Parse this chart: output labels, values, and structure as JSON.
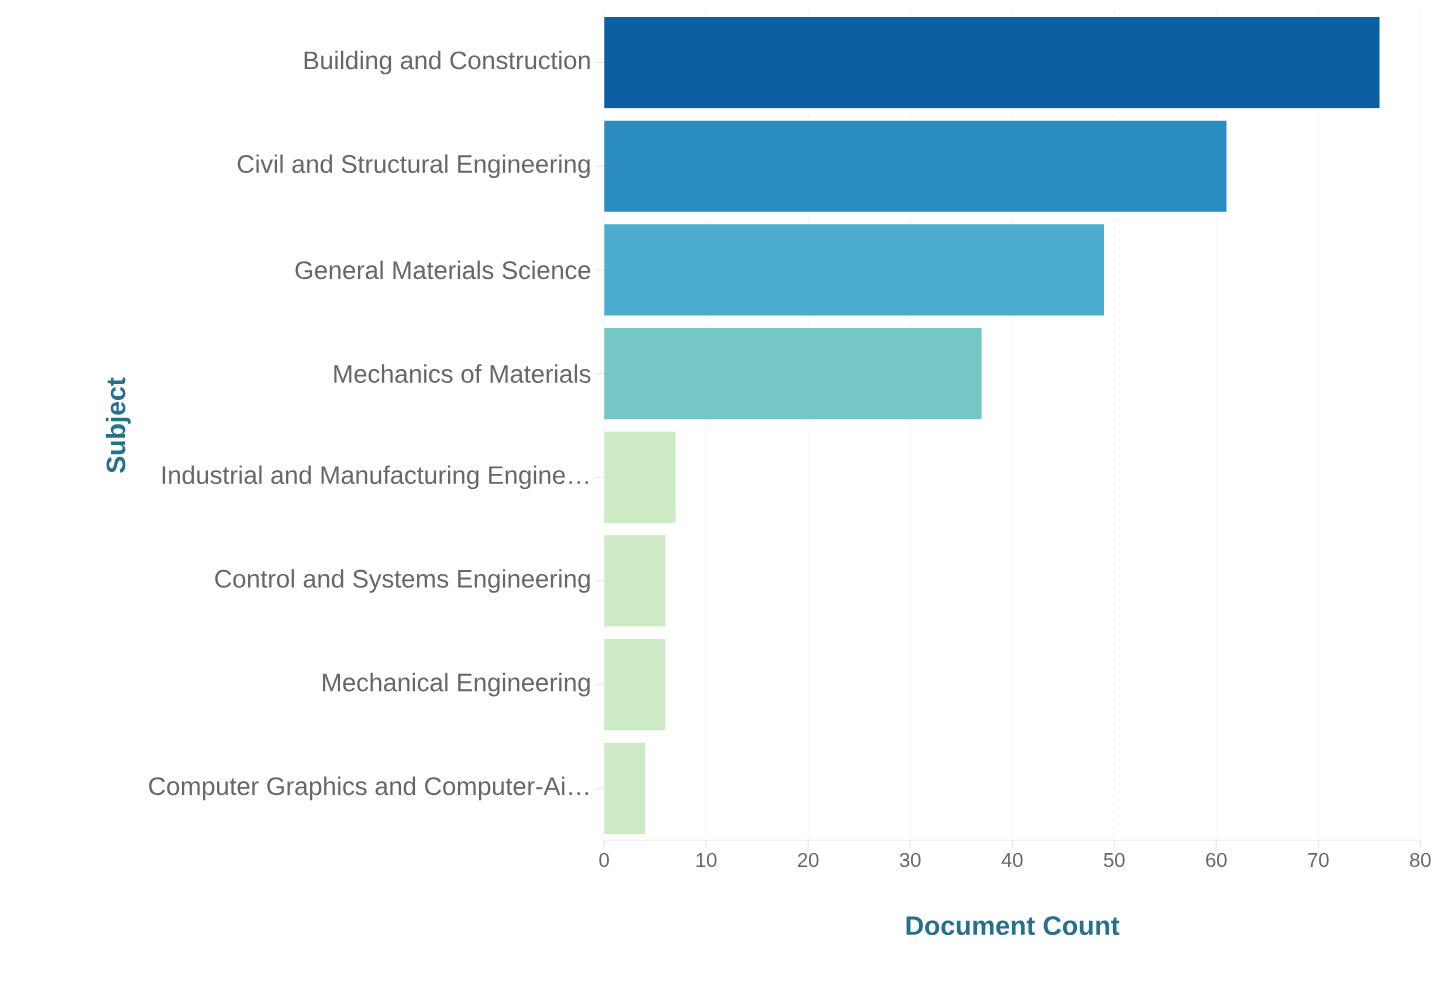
{
  "chart_data": {
    "type": "bar",
    "orientation": "horizontal",
    "xlabel": "Document Count",
    "ylabel": "Subject",
    "categories": [
      "Building and Construction",
      "Civil and Structural Engineering",
      "General Materials Science",
      "Mechanics of Materials",
      "Industrial and Manufacturing Engine…",
      "Control and Systems Engineering",
      "Mechanical Engineering",
      "Computer Graphics and Computer-Ai…"
    ],
    "values": [
      76,
      61,
      49,
      37,
      7,
      6,
      6,
      4
    ],
    "colors": [
      "#0d5fa3",
      "#2b8cc0",
      "#4bacce",
      "#74c7c5",
      "#cde9c6",
      "#cde9c6",
      "#cde9c6",
      "#cde9c6"
    ],
    "xlim": [
      0,
      80
    ],
    "xticks": [
      0,
      10,
      20,
      30,
      40,
      50,
      60,
      70,
      80
    ],
    "grid": "x"
  }
}
